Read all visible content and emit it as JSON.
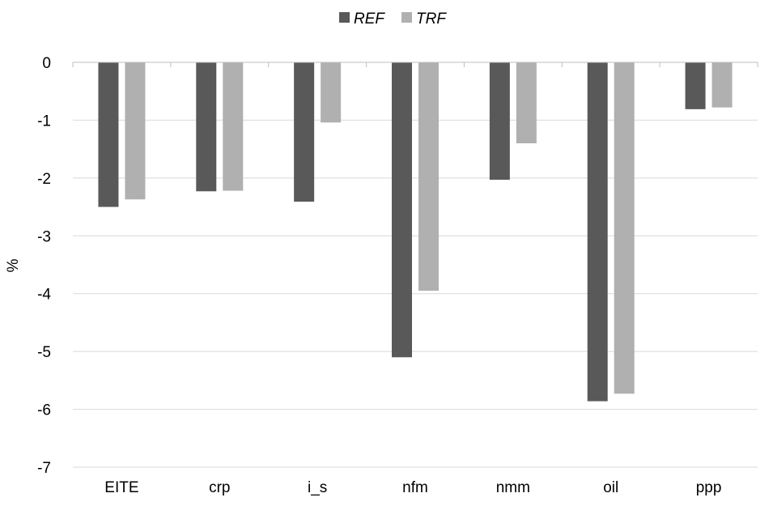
{
  "chart_data": {
    "type": "bar",
    "title": "",
    "xlabel": "",
    "ylabel": "%",
    "ylim": [
      -7,
      0
    ],
    "yticks": [
      0,
      -1,
      -2,
      -3,
      -4,
      -5,
      -6,
      -7
    ],
    "grid": true,
    "legend_position": "top-center",
    "categories": [
      "EITE",
      "crp",
      "i_s",
      "nfm",
      "nmm",
      "oil",
      "ppp"
    ],
    "series": [
      {
        "name": "REF",
        "color": "#595959",
        "values": [
          -2.5,
          -2.23,
          -2.41,
          -5.1,
          -2.03,
          -5.86,
          -0.81
        ]
      },
      {
        "name": "TRF",
        "color": "#b0b0b0",
        "values": [
          -2.37,
          -2.22,
          -1.04,
          -3.95,
          -1.4,
          -5.73,
          -0.78
        ]
      }
    ]
  }
}
